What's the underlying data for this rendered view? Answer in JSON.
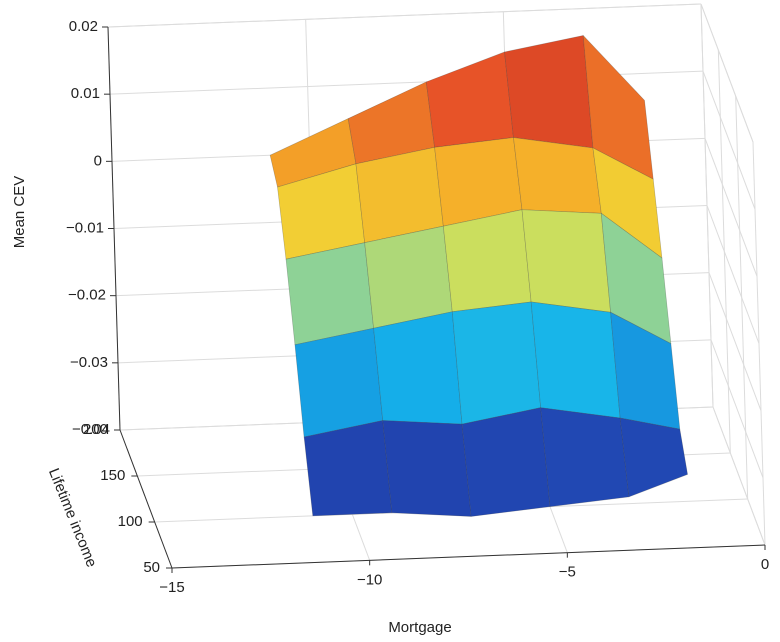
{
  "chart_data": {
    "type": "surface3d",
    "xlabel": "Mortgage",
    "ylabel": "Lifetime income",
    "zlabel": "Mean CEV",
    "x": [
      -11,
      -9,
      -7,
      -5,
      -3,
      -1.5
    ],
    "y": [
      100,
      120,
      140,
      160,
      180,
      200
    ],
    "z": [
      [
        -0.04,
        -0.04,
        -0.041,
        -0.04,
        -0.039,
        -0.036
      ],
      [
        -0.031,
        -0.029,
        -0.03,
        -0.028,
        -0.03,
        -0.032
      ],
      [
        -0.02,
        -0.018,
        -0.016,
        -0.015,
        -0.017,
        -0.022
      ],
      [
        -0.01,
        -0.008,
        -0.006,
        -0.004,
        -0.005,
        -0.012
      ],
      [
        -0.002,
        0.001,
        0.003,
        0.004,
        0.002,
        -0.003
      ],
      [
        0.0,
        0.005,
        0.01,
        0.014,
        0.016,
        0.006
      ]
    ],
    "xlim": [
      -15,
      0
    ],
    "ylim": [
      50,
      200
    ],
    "zlim": [
      -0.04,
      0.02
    ],
    "xticks": [
      {
        "value": -15,
        "label": "−15"
      },
      {
        "value": -10,
        "label": "−10"
      },
      {
        "value": -5,
        "label": "−5"
      },
      0
    ],
    "yticks": [
      50,
      100,
      150,
      200
    ],
    "zticks": [
      0.02,
      0.01,
      0,
      {
        "value": -0.01,
        "label": "−0.01"
      },
      {
        "value": -0.02,
        "label": "−0.02"
      },
      {
        "value": -0.03,
        "label": "−0.03"
      },
      {
        "value": -0.04,
        "label": "−0.04"
      }
    ],
    "grid": true,
    "colormap": "jet"
  }
}
